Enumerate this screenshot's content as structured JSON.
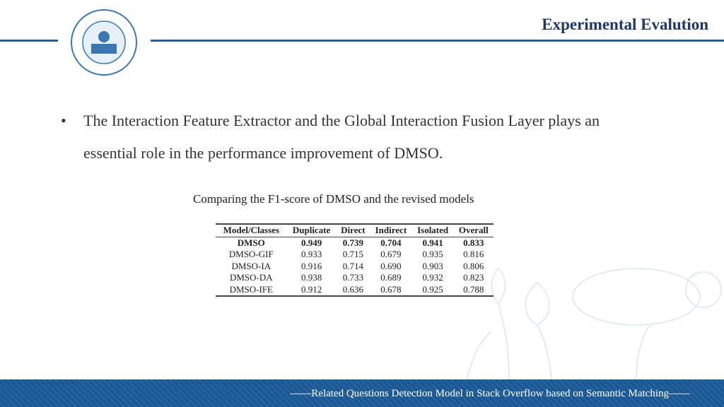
{
  "header": {
    "title": "Experimental Evalution"
  },
  "bullet": "The  Interaction Feature Extractor and the Global Interaction Fusion Layer plays an essential role in the performance improvement of DMSO.",
  "table": {
    "caption": "Comparing the F1-score of DMSO and the revised models",
    "columns": [
      "Model/Classes",
      "Duplicate",
      "Direct",
      "Indirect",
      "Isolated",
      "Overall"
    ],
    "rows": [
      [
        "DMSO",
        "0.949",
        "0.739",
        "0.704",
        "0.941",
        "0.833"
      ],
      [
        "DMSO-GIF",
        "0.933",
        "0.715",
        "0.679",
        "0.935",
        "0.816"
      ],
      [
        "DMSO-IA",
        "0.916",
        "0.714",
        "0.690",
        "0.903",
        "0.806"
      ],
      [
        "DMSO-DA",
        "0.938",
        "0.733",
        "0.689",
        "0.932",
        "0.823"
      ],
      [
        "DMSO-IFE",
        "0.912",
        "0.636",
        "0.678",
        "0.925",
        "0.788"
      ]
    ]
  },
  "footer": "——Related Questions Detection Model in Stack Overflow based on Semantic Matching——"
}
